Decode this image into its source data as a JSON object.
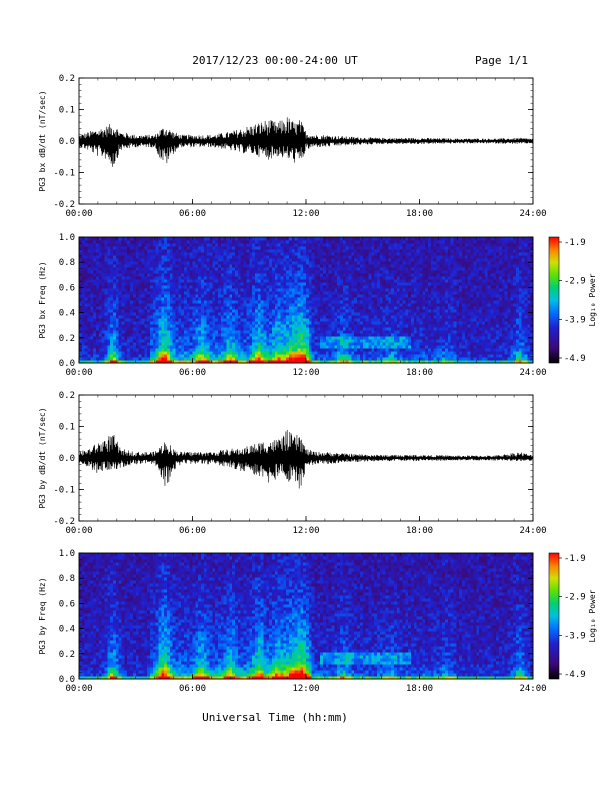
{
  "header": {
    "date_range": "2017/12/23  00:00-24:00 UT",
    "page": "Page 1/1"
  },
  "footer": {
    "xlabel": "Universal Time (hh:mm)"
  },
  "colors": {
    "trace": "#000000",
    "spec_background": "#3a0a55",
    "colorbar": [
      "#1a0030",
      "#3b0a78",
      "#2020d0",
      "#0070ff",
      "#00c0e0",
      "#00d070",
      "#60e000",
      "#d0e000",
      "#ff8000",
      "#ff0000"
    ]
  },
  "chart_data": [
    {
      "type": "line",
      "ylabel": "PG3 bx dB/dt (nT/sec)",
      "x_ticks": [
        "00:00",
        "06:00",
        "12:00",
        "18:00",
        "24:00"
      ],
      "y_ticks": [
        "0.2",
        "0.1",
        "0.0",
        "-0.1",
        "-0.2"
      ],
      "xlim": [
        0,
        24
      ],
      "ylim": [
        -0.2,
        0.2
      ],
      "envelope": {
        "hours": [
          0,
          0.5,
          1,
          1.5,
          1.8,
          2.2,
          3,
          4,
          4.3,
          4.6,
          5,
          5.4,
          6,
          7,
          8,
          8.5,
          9,
          9.5,
          10,
          10.5,
          11,
          11.4,
          11.7,
          12,
          12.5,
          13,
          14,
          15,
          16,
          18,
          20,
          22,
          23.3,
          24
        ],
        "upper": [
          0.02,
          0.03,
          0.04,
          0.05,
          0.06,
          0.03,
          0.02,
          0.02,
          0.04,
          0.05,
          0.03,
          0.02,
          0.02,
          0.02,
          0.03,
          0.04,
          0.05,
          0.06,
          0.07,
          0.06,
          0.08,
          0.06,
          0.07,
          0.03,
          0.02,
          0.02,
          0.015,
          0.012,
          0.01,
          0.01,
          0.008,
          0.008,
          0.01,
          0.008
        ],
        "lower": [
          -0.02,
          -0.03,
          -0.05,
          -0.06,
          -0.09,
          -0.03,
          -0.02,
          -0.02,
          -0.06,
          -0.08,
          -0.04,
          -0.02,
          -0.02,
          -0.02,
          -0.03,
          -0.04,
          -0.04,
          -0.05,
          -0.06,
          -0.05,
          -0.06,
          -0.07,
          -0.08,
          -0.03,
          -0.02,
          -0.02,
          -0.015,
          -0.012,
          -0.01,
          -0.01,
          -0.008,
          -0.008,
          -0.01,
          -0.008
        ]
      }
    },
    {
      "type": "heatmap",
      "ylabel": "PG3 bx Freq (Hz)",
      "x_ticks": [
        "00:00",
        "06:00",
        "12:00",
        "18:00",
        "24:00"
      ],
      "y_ticks": [
        "1.0",
        "0.8",
        "0.6",
        "0.4",
        "0.2",
        "0.0"
      ],
      "xlim": [
        0,
        24
      ],
      "ylim": [
        0,
        1
      ],
      "colorbar_label": "Log₁₀ Power",
      "colorbar_ticks": [
        "-1.9",
        "-2.9",
        "-3.9",
        "-4.9"
      ],
      "zlim": [
        -4.9,
        -1.9
      ]
    },
    {
      "type": "line",
      "ylabel": "PG3 by dB/dt (nT/sec)",
      "x_ticks": [
        "00:00",
        "06:00",
        "12:00",
        "18:00",
        "24:00"
      ],
      "y_ticks": [
        "0.2",
        "0.1",
        "0.0",
        "-0.1",
        "-0.2"
      ],
      "xlim": [
        0,
        24
      ],
      "ylim": [
        -0.2,
        0.2
      ],
      "envelope": {
        "hours": [
          0,
          0.5,
          1,
          1.5,
          1.8,
          2.2,
          3,
          4,
          4.3,
          4.6,
          5,
          5.4,
          6,
          7,
          8,
          8.5,
          9,
          9.5,
          10,
          10.5,
          11,
          11.4,
          11.7,
          12,
          12.5,
          13,
          14,
          15,
          16,
          18,
          20,
          22,
          23.3,
          24
        ],
        "upper": [
          0.02,
          0.03,
          0.05,
          0.07,
          0.08,
          0.03,
          0.02,
          0.02,
          0.04,
          0.06,
          0.03,
          0.02,
          0.02,
          0.02,
          0.03,
          0.03,
          0.04,
          0.05,
          0.06,
          0.06,
          0.09,
          0.07,
          0.08,
          0.03,
          0.02,
          0.02,
          0.015,
          0.012,
          0.01,
          0.01,
          0.008,
          0.008,
          0.02,
          0.008
        ],
        "lower": [
          -0.02,
          -0.03,
          -0.05,
          -0.04,
          -0.04,
          -0.03,
          -0.02,
          -0.02,
          -0.05,
          -0.1,
          -0.04,
          -0.02,
          -0.02,
          -0.02,
          -0.03,
          -0.04,
          -0.05,
          -0.06,
          -0.08,
          -0.07,
          -0.07,
          -0.1,
          -0.12,
          -0.03,
          -0.02,
          -0.02,
          -0.015,
          -0.012,
          -0.01,
          -0.01,
          -0.008,
          -0.008,
          -0.01,
          -0.008
        ]
      }
    },
    {
      "type": "heatmap",
      "ylabel": "PG3 by Freq (Hz)",
      "x_ticks": [
        "00:00",
        "06:00",
        "12:00",
        "18:00",
        "24:00"
      ],
      "y_ticks": [
        "1.0",
        "0.8",
        "0.6",
        "0.4",
        "0.2",
        "0.0"
      ],
      "xlim": [
        0,
        24
      ],
      "ylim": [
        0,
        1
      ],
      "colorbar_label": "Log₁₀ Power",
      "colorbar_ticks": [
        "-1.9",
        "-2.9",
        "-3.9",
        "-4.9"
      ],
      "zlim": [
        -4.9,
        -1.9
      ]
    }
  ]
}
